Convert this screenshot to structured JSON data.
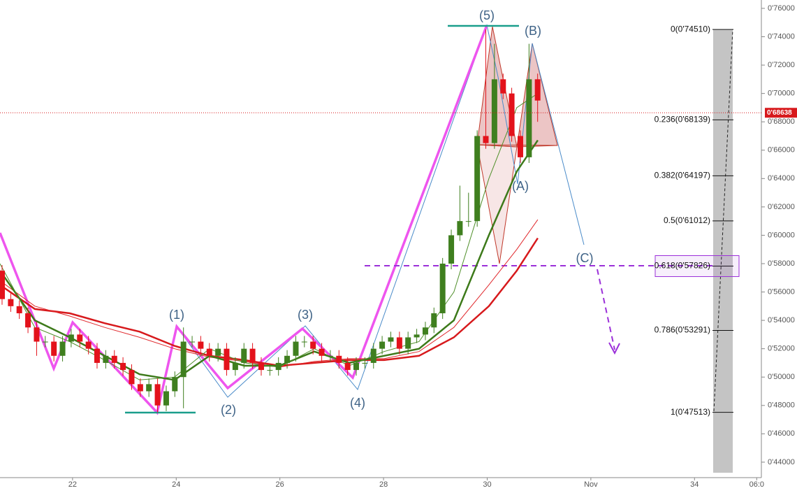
{
  "chart_data": {
    "type": "candlestick",
    "x": [
      20.64,
      20.807,
      20.973,
      21.14,
      21.307,
      21.473,
      21.64,
      21.807,
      21.973,
      22.14,
      22.307,
      22.473,
      22.64,
      22.807,
      22.973,
      23.14,
      23.307,
      23.473,
      23.64,
      23.807,
      23.973,
      24.14,
      24.307,
      24.473,
      24.64,
      24.807,
      24.973,
      25.14,
      25.307,
      25.473,
      25.64,
      25.807,
      25.973,
      26.14,
      26.307,
      26.473,
      26.64,
      26.807,
      26.973,
      27.14,
      27.307,
      27.473,
      27.64,
      27.807,
      27.973,
      28.14,
      28.307,
      28.473,
      28.64,
      28.807,
      28.973,
      29.14,
      29.307,
      29.473,
      29.64,
      29.807,
      29.973,
      30.14,
      30.307,
      30.473,
      30.64,
      30.807,
      30.973
    ],
    "open": [
      0.575,
      0.555,
      0.55,
      0.545,
      0.535,
      0.525,
      0.525,
      0.515,
      0.525,
      0.53,
      0.525,
      0.52,
      0.51,
      0.515,
      0.51,
      0.505,
      0.495,
      0.49,
      0.495,
      0.48,
      0.49,
      0.5,
      0.525,
      0.525,
      0.52,
      0.515,
      0.52,
      0.505,
      0.51,
      0.52,
      0.51,
      0.505,
      0.505,
      0.51,
      0.515,
      0.525,
      0.525,
      0.52,
      0.515,
      0.515,
      0.51,
      0.505,
      0.51,
      0.51,
      0.52,
      0.525,
      0.528,
      0.52,
      0.528,
      0.53,
      0.535,
      0.545,
      0.58,
      0.6,
      0.61,
      0.61,
      0.67,
      0.665,
      0.71,
      0.7,
      0.67,
      0.655,
      0.71
    ],
    "high": [
      0.579,
      0.559,
      0.554,
      0.549,
      0.539,
      0.529,
      0.529,
      0.529,
      0.534,
      0.534,
      0.529,
      0.524,
      0.519,
      0.519,
      0.514,
      0.509,
      0.499,
      0.499,
      0.499,
      0.494,
      0.504,
      0.535,
      0.529,
      0.529,
      0.524,
      0.524,
      0.524,
      0.514,
      0.524,
      0.524,
      0.514,
      0.509,
      0.514,
      0.519,
      0.529,
      0.529,
      0.529,
      0.524,
      0.519,
      0.519,
      0.514,
      0.514,
      0.514,
      0.524,
      0.529,
      0.532,
      0.532,
      0.532,
      0.534,
      0.539,
      0.549,
      0.584,
      0.604,
      0.635,
      0.63,
      0.674,
      0.7451,
      0.735,
      0.714,
      0.704,
      0.674,
      0.735,
      0.714
    ],
    "low": [
      0.551,
      0.546,
      0.541,
      0.531,
      0.515,
      0.521,
      0.511,
      0.511,
      0.521,
      0.521,
      0.516,
      0.506,
      0.506,
      0.506,
      0.501,
      0.491,
      0.486,
      0.486,
      0.475,
      0.476,
      0.486,
      0.478,
      0.521,
      0.516,
      0.511,
      0.511,
      0.501,
      0.501,
      0.506,
      0.506,
      0.501,
      0.501,
      0.501,
      0.506,
      0.511,
      0.521,
      0.516,
      0.511,
      0.511,
      0.506,
      0.501,
      0.501,
      0.506,
      0.506,
      0.516,
      0.521,
      0.516,
      0.516,
      0.524,
      0.526,
      0.531,
      0.541,
      0.576,
      0.596,
      0.606,
      0.606,
      0.661,
      0.661,
      0.696,
      0.666,
      0.651,
      0.651,
      0.68
    ],
    "close": [
      0.555,
      0.55,
      0.545,
      0.535,
      0.525,
      0.525,
      0.515,
      0.525,
      0.53,
      0.525,
      0.52,
      0.51,
      0.515,
      0.51,
      0.505,
      0.495,
      0.49,
      0.495,
      0.48,
      0.49,
      0.5,
      0.525,
      0.525,
      0.52,
      0.515,
      0.52,
      0.505,
      0.51,
      0.52,
      0.51,
      0.505,
      0.505,
      0.51,
      0.515,
      0.525,
      0.525,
      0.52,
      0.515,
      0.515,
      0.51,
      0.505,
      0.51,
      0.51,
      0.52,
      0.525,
      0.528,
      0.52,
      0.528,
      0.53,
      0.535,
      0.545,
      0.58,
      0.6,
      0.61,
      0.61,
      0.67,
      0.665,
      0.71,
      0.7,
      0.67,
      0.655,
      0.71,
      0.695
    ],
    "up_color": "#3f7f1f",
    "down_color": "#e3121b",
    "overlays": {
      "x": [
        20.598,
        21.272,
        21.946,
        22.62,
        23.294,
        23.968,
        24.642,
        25.315,
        25.989,
        26.663,
        27.337,
        28.011,
        28.685,
        29.358,
        30.032,
        30.571,
        30.976
      ],
      "series": [
        {
          "color": "#d7191c",
          "width": 2.5,
          "values": [
            0.565,
            0.548,
            0.545,
            0.538,
            0.532,
            0.522,
            0.515,
            0.512,
            0.508,
            0.51,
            0.512,
            0.512,
            0.515,
            0.528,
            0.55,
            0.575,
            0.598
          ]
        },
        {
          "color": "#e0282c",
          "width": 1,
          "values": [
            0.568,
            0.55,
            0.543,
            0.535,
            0.528,
            0.52,
            0.514,
            0.511,
            0.507,
            0.511,
            0.513,
            0.513,
            0.518,
            0.535,
            0.565,
            0.59,
            0.611
          ]
        },
        {
          "color": "#3d7a1a",
          "width": 2.5,
          "values": [
            0.575,
            0.54,
            0.528,
            0.515,
            0.502,
            0.498,
            0.515,
            0.508,
            0.508,
            0.518,
            0.51,
            0.515,
            0.52,
            0.54,
            0.6,
            0.645,
            0.667
          ]
        },
        {
          "color": "#4f8f2a",
          "width": 1,
          "values": [
            0.58,
            0.535,
            0.525,
            0.512,
            0.498,
            0.5,
            0.52,
            0.51,
            0.507,
            0.52,
            0.508,
            0.518,
            0.525,
            0.56,
            0.64,
            0.69,
            0.7
          ]
        }
      ]
    },
    "xlim": [
      20.6,
      35.29
    ],
    "xticks": [
      22,
      24,
      26,
      28,
      30,
      {
        "value": 32,
        "label": "Nov"
      },
      34,
      {
        "value": 35.2,
        "label": "06:0"
      }
    ],
    "ylim": [
      0.4291,
      0.7659
    ],
    "yticks": [
      {
        "value": 0.44,
        "label": "0'44000"
      },
      {
        "value": 0.46,
        "label": "0'46000"
      },
      {
        "value": 0.48,
        "label": "0'48000"
      },
      {
        "value": 0.5,
        "label": "0'50000"
      },
      {
        "value": 0.52,
        "label": "0'52000"
      },
      {
        "value": 0.54,
        "label": "0'54000"
      },
      {
        "value": 0.56,
        "label": "0'56000"
      },
      {
        "value": 0.58,
        "label": "0'58000"
      },
      {
        "value": 0.6,
        "label": "0'60000"
      },
      {
        "value": 0.62,
        "label": "0'62000"
      },
      {
        "value": 0.64,
        "label": "0'64000"
      },
      {
        "value": 0.66,
        "label": "0'66000"
      },
      {
        "value": 0.68,
        "label": "0'68000"
      },
      {
        "value": 0.7,
        "label": "0'70000"
      },
      {
        "value": 0.72,
        "label": "0'72000"
      },
      {
        "value": 0.74,
        "label": "0'74000"
      },
      {
        "value": 0.76,
        "label": "0'76000"
      }
    ],
    "last_price": {
      "value": 0.68638,
      "label": "0'68638",
      "color": "#d7191c"
    },
    "fib_levels": [
      {
        "value": 0.7451,
        "label": "0(0'74510)"
      },
      {
        "value": 0.68139,
        "label": "0.236(0'68139)"
      },
      {
        "value": 0.64197,
        "label": "0.382(0'64197)"
      },
      {
        "value": 0.61012,
        "label": "0.5(0'61012)"
      },
      {
        "value": 0.57826,
        "label": "0.618(0'57826)",
        "highlight": "#9b30d9"
      },
      {
        "value": 0.53291,
        "label": "0.786(0'53291)"
      },
      {
        "value": 0.47513,
        "label": "1(0'47513)"
      }
    ],
    "wave_labels": [
      "(1)",
      "(2)",
      "(3)",
      "(4)",
      "(5)",
      "(A)",
      "(B)",
      "(C)"
    ]
  }
}
